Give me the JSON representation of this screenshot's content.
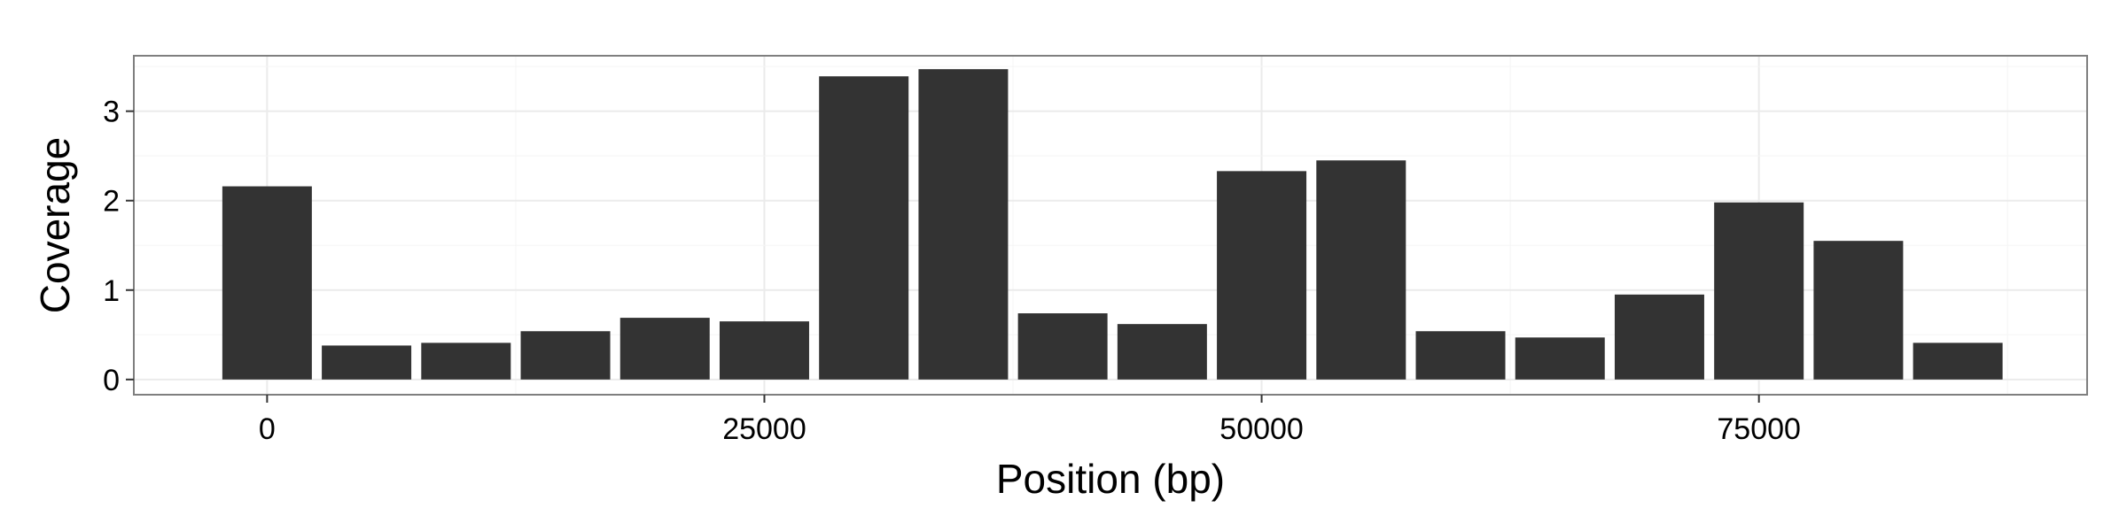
{
  "chart_data": {
    "type": "bar",
    "xlabel": "Position (bp)",
    "ylabel": "Coverage",
    "x": [
      0,
      5000,
      10000,
      15000,
      20000,
      25000,
      30000,
      35000,
      40000,
      45000,
      50000,
      55000,
      60000,
      65000,
      70000,
      75000,
      80000,
      85000
    ],
    "values": [
      2.16,
      0.38,
      0.41,
      0.54,
      0.69,
      0.65,
      3.39,
      3.47,
      0.74,
      0.62,
      2.33,
      2.45,
      0.54,
      0.47,
      0.95,
      1.98,
      1.55,
      0.41
    ],
    "xlim": [
      -6700,
      91500
    ],
    "ylim": [
      -0.17,
      3.62
    ],
    "xticks": [
      0,
      25000,
      50000,
      75000
    ],
    "yticks": [
      0,
      1,
      2,
      3
    ],
    "grid": true,
    "colors": {
      "bar": "#333333",
      "panel_border": "#7f7f7f",
      "grid_major": "#ebebeb",
      "grid_minor": "#f5f5f5"
    }
  }
}
